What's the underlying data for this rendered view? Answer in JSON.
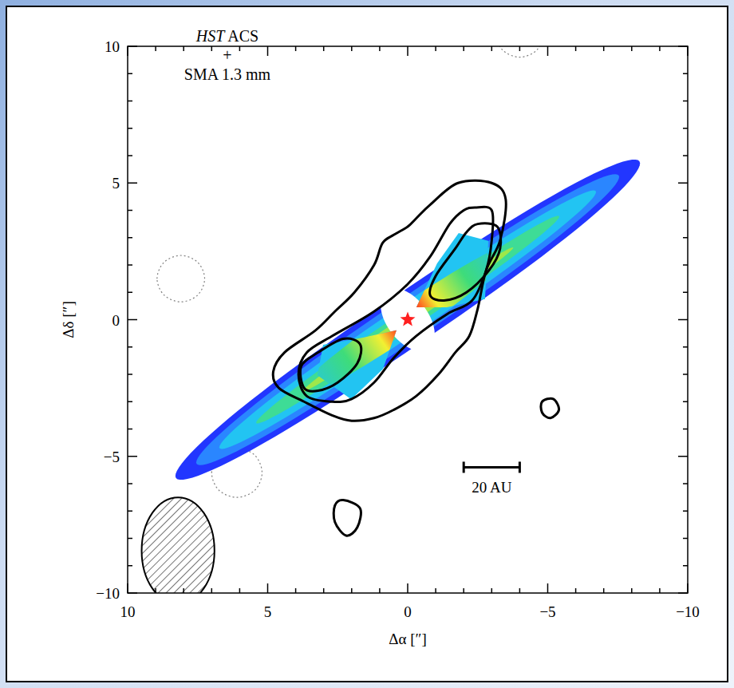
{
  "chart_data": {
    "type": "contour",
    "title": [
      "HST ACS",
      "+",
      "SMA 1.3 mm"
    ],
    "x_label": "Δα [″]",
    "y_label": "Δδ [″]",
    "xlim": [
      10,
      -10
    ],
    "ylim": [
      -10,
      10
    ],
    "xticks": [
      10,
      5,
      0,
      {
        "value": -5,
        "label": "−5"
      },
      {
        "value": -10,
        "label": "−10"
      }
    ],
    "yticks": [
      {
        "value": -10,
        "label": "−10"
      },
      {
        "value": -5,
        "label": "−5"
      },
      0,
      5,
      10
    ],
    "minor_ticks": [
      -9,
      -8,
      -7,
      -6,
      -4,
      -3,
      -2,
      -1,
      1,
      2,
      3,
      4,
      6,
      7,
      8,
      9
    ],
    "image": {
      "position_angle": 125,
      "layers": [
        {
          "radius": 10.1,
          "half_width": 0.95,
          "color": "#2236ff"
        },
        {
          "radius": 9.2,
          "half_width": 0.75,
          "color": "#2a86ff"
        },
        {
          "radius": 8.2,
          "half_width": 0.55,
          "color": "#22c4f2"
        },
        {
          "radius": 6.6,
          "half_width": 0.34,
          "color": "#3edc96"
        },
        {
          "radius": 4.6,
          "half_width": 0.18,
          "color": "#9ee84a"
        }
      ],
      "stripe_half_width": 0.55,
      "stripe_colors": [
        "#22c4f2",
        "#3edc7a",
        "#f2f032",
        "#ff4a1e"
      ],
      "wedges": [
        {
          "x": [
            -0.31,
            -1.05,
            -1.82,
            -2.88,
            -2.76,
            -1.4
          ],
          "y": [
            0.45,
            2.06,
            3.17,
            2.88,
            0.75,
            0.45
          ]
        },
        {
          "x": [
            0.4,
            1.6,
            3.02,
            3.22,
            2.02,
            0.88
          ],
          "y": [
            -0.39,
            -0.66,
            -0.92,
            -2.03,
            -2.91,
            -1.8
          ]
        }
      ]
    },
    "contours": [
      {
        "x": [
          8.95,
          8.7,
          8.1,
          7.5,
          7.25,
          7.5,
          8.1,
          8.7
        ],
        "y": [
          1.5,
          2.1,
          2.35,
          2.1,
          1.5,
          0.9,
          0.65,
          0.9
        ],
        "line_style": "dotted",
        "color": "#808080"
      },
      {
        "x": [
          7.0,
          6.74,
          6.1,
          5.46,
          5.2,
          5.46,
          6.1,
          6.74
        ],
        "y": [
          -5.6,
          -4.96,
          -4.7,
          -4.96,
          -5.6,
          -6.24,
          -6.5,
          -6.24
        ],
        "line_style": "dotted",
        "color": "#808080"
      },
      {
        "x": [
          -3.2,
          -3.4,
          -4.0,
          -4.6,
          -4.8,
          -4.6,
          -4.0,
          -3.4
        ],
        "y": [
          10.4,
          10.95,
          11.2,
          10.95,
          10.4,
          9.85,
          9.6,
          9.85
        ],
        "line_style": "dotted",
        "color": "#808080"
      },
      {
        "x": [
          -0.8,
          -1.8,
          -3.0,
          -3.5,
          -3.3,
          -2.8,
          -2.5,
          -2.2,
          -1.7,
          -1.1,
          -0.3,
          0.5,
          1.2,
          2.0,
          2.7,
          3.7,
          4.6,
          4.8,
          4.4,
          3.3,
          2.6,
          1.9,
          1.2,
          0.9,
          0.5,
          0.0,
          -0.3
        ],
        "y": [
          4.2,
          5.0,
          5.0,
          4.4,
          2.9,
          1.8,
          0.4,
          -0.6,
          -1.2,
          -2.0,
          -2.8,
          -3.3,
          -3.6,
          -3.7,
          -3.5,
          -3.0,
          -2.5,
          -1.9,
          -1.2,
          -0.4,
          0.3,
          1.0,
          2.0,
          2.8,
          3.1,
          3.4,
          3.7
        ],
        "line_style": "solid",
        "color": "#000000"
      },
      {
        "x": [
          -2.4,
          -3.0,
          -3.0,
          -2.8,
          -2.3,
          -1.4,
          -0.3,
          0.5,
          1.2,
          2.0,
          2.7,
          3.6,
          3.9,
          3.6,
          2.7,
          1.2,
          0.0,
          -0.8,
          -1.5,
          -2.0
        ],
        "y": [
          4.1,
          4.0,
          2.9,
          1.8,
          0.7,
          0.2,
          -0.6,
          -1.4,
          -2.3,
          -2.9,
          -3.0,
          -2.8,
          -2.0,
          -1.2,
          -0.6,
          0.3,
          1.3,
          2.3,
          3.5,
          4.0
        ],
        "line_style": "solid",
        "color": "#000000"
      },
      {
        "x": [
          -2.5,
          -3.2,
          -3.3,
          -2.9,
          -2.1,
          -1.3,
          -0.8,
          -1.0,
          -1.7,
          -2.1
        ],
        "y": [
          3.5,
          3.4,
          2.6,
          1.8,
          1.0,
          0.7,
          0.9,
          1.6,
          2.6,
          3.2
        ],
        "line_style": "solid",
        "color": "#000000"
      },
      {
        "x": [
          2.3,
          1.7,
          1.8,
          2.5,
          3.2,
          3.7,
          3.8,
          3.2
        ],
        "y": [
          -0.7,
          -0.9,
          -1.6,
          -2.3,
          -2.6,
          -2.5,
          -1.7,
          -1.2
        ],
        "line_style": "solid",
        "color": "#000000"
      },
      {
        "x": [
          2.3,
          1.7,
          1.8,
          2.2,
          2.6,
          2.6
        ],
        "y": [
          -6.6,
          -6.9,
          -7.6,
          -7.9,
          -7.4,
          -6.8
        ],
        "line_style": "solid",
        "color": "#000000"
      },
      {
        "x": [
          -4.8,
          -5.2,
          -5.4,
          -5.1,
          -4.8
        ],
        "y": [
          -3.0,
          -2.9,
          -3.3,
          -3.6,
          -3.4
        ],
        "line_style": "solid",
        "color": "#000000"
      }
    ],
    "star": {
      "x": 0,
      "y": 0,
      "marker": "star",
      "color": "#ff2020"
    },
    "beam": {
      "x": 8.2,
      "y": -8.45,
      "major": 3.9,
      "minor": 2.6
    },
    "scale_bar": {
      "label": "20 AU",
      "x": [
        -2,
        -4
      ],
      "y": -5.4
    }
  }
}
